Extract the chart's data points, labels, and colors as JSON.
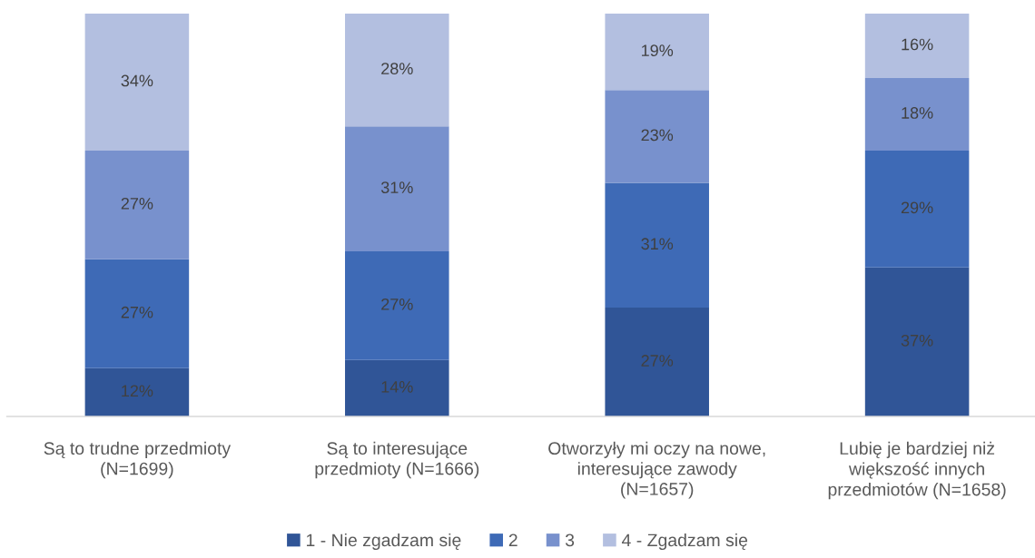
{
  "chart_data": {
    "type": "bar",
    "stacked": true,
    "categories": [
      "Są to trudne przedmioty\n(N=1699)",
      "Są to interesujące\nprzedmioty (N=1666)",
      "Otworzyły mi oczy na nowe,\ninteresujące zawody\n(N=1657)",
      "Lubię je bardziej niż\nwiększość innych\nprzedmiotów (N=1658)"
    ],
    "series": [
      {
        "name": "1 - Nie zgadzam się",
        "color": "#305597",
        "values": [
          12,
          14,
          27,
          37
        ],
        "value_labels": [
          "12%",
          "14%",
          "27%",
          "37%"
        ]
      },
      {
        "name": "2",
        "color": "#3e6ab6",
        "values": [
          27,
          27,
          31,
          29
        ],
        "value_labels": [
          "27%",
          "27%",
          "31%",
          "29%"
        ]
      },
      {
        "name": "3",
        "color": "#7891cd",
        "values": [
          27,
          31,
          23,
          18
        ],
        "value_labels": [
          "27%",
          "31%",
          "23%",
          "18%"
        ]
      },
      {
        "name": "4 - Zgadzam się",
        "color": "#b3bfe0",
        "values": [
          34,
          28,
          19,
          16
        ],
        "value_labels": [
          "34%",
          "28%",
          "19%",
          "16%"
        ]
      }
    ],
    "ylim": [
      0,
      100
    ],
    "tick_labels": "x",
    "legend": "bottom"
  }
}
